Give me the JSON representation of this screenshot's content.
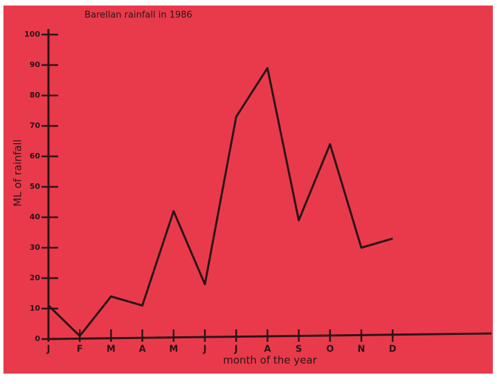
{
  "chart_data": {
    "type": "line",
    "title": "Barellan rainfall in 1986",
    "y_label": "ML of rainfall",
    "x_label": "month of the year",
    "categories": [
      "J",
      "F",
      "M",
      "A",
      "M",
      "J",
      "J",
      "A",
      "S",
      "O",
      "N",
      "D"
    ],
    "values": [
      11,
      1,
      14,
      11,
      42,
      18,
      73,
      89,
      39,
      64,
      30,
      33
    ],
    "color": "#2a1418",
    "ylim": [
      0,
      100
    ],
    "yticks": [
      0,
      10,
      20,
      30,
      40,
      50,
      60,
      70,
      80,
      90,
      100
    ]
  }
}
